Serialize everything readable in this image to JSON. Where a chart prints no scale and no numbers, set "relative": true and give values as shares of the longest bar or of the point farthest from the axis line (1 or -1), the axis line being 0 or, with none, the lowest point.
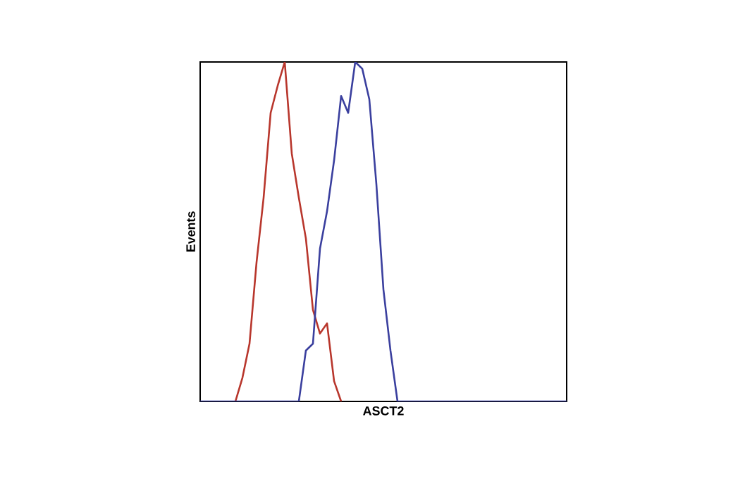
{
  "chart_data": {
    "type": "line",
    "xlabel": "ASCT2",
    "ylabel": "Events",
    "relative": true,
    "marker": "none",
    "line_style": "solid",
    "categories": [
      null,
      null,
      null,
      null,
      null,
      null,
      null,
      null,
      null,
      null,
      null,
      null,
      null,
      null,
      null,
      null,
      null,
      null,
      null,
      null,
      null,
      null,
      null,
      null,
      null,
      null,
      null,
      null,
      null,
      null,
      null,
      null,
      null,
      null,
      null,
      null,
      null,
      null,
      null,
      null,
      null,
      null,
      null,
      null,
      null,
      null,
      null,
      null,
      null,
      null,
      null,
      null,
      null
    ],
    "series": [
      {
        "color": "#b8362c",
        "values": [
          null,
          null,
          null,
          null,
          null,
          0,
          0.07,
          0.17,
          0.41,
          0.6,
          0.85,
          0.93,
          1.0,
          0.73,
          0.6,
          0.48,
          0.27,
          0.2,
          0.23,
          0.06,
          0,
          null,
          null,
          null,
          null,
          null,
          null,
          null,
          null,
          null,
          null,
          null,
          null,
          null,
          null,
          null,
          null,
          null,
          null,
          null,
          null,
          null,
          null,
          null,
          null,
          null,
          null,
          null,
          null,
          null,
          null,
          null,
          null
        ]
      },
      {
        "color": "#3a3f9e",
        "values": [
          0,
          0,
          0,
          0,
          0,
          0,
          0,
          0,
          0,
          0,
          0,
          0,
          0,
          0,
          0,
          0.15,
          0.17,
          0.45,
          0.56,
          0.71,
          0.9,
          0.85,
          1.0,
          0.98,
          0.89,
          0.64,
          0.33,
          0.15,
          0,
          0,
          0,
          0,
          0,
          0,
          0,
          0,
          0,
          0,
          0,
          0,
          0,
          0,
          0,
          0,
          0,
          0,
          0,
          0,
          0,
          0,
          0,
          0,
          0
        ]
      }
    ]
  }
}
